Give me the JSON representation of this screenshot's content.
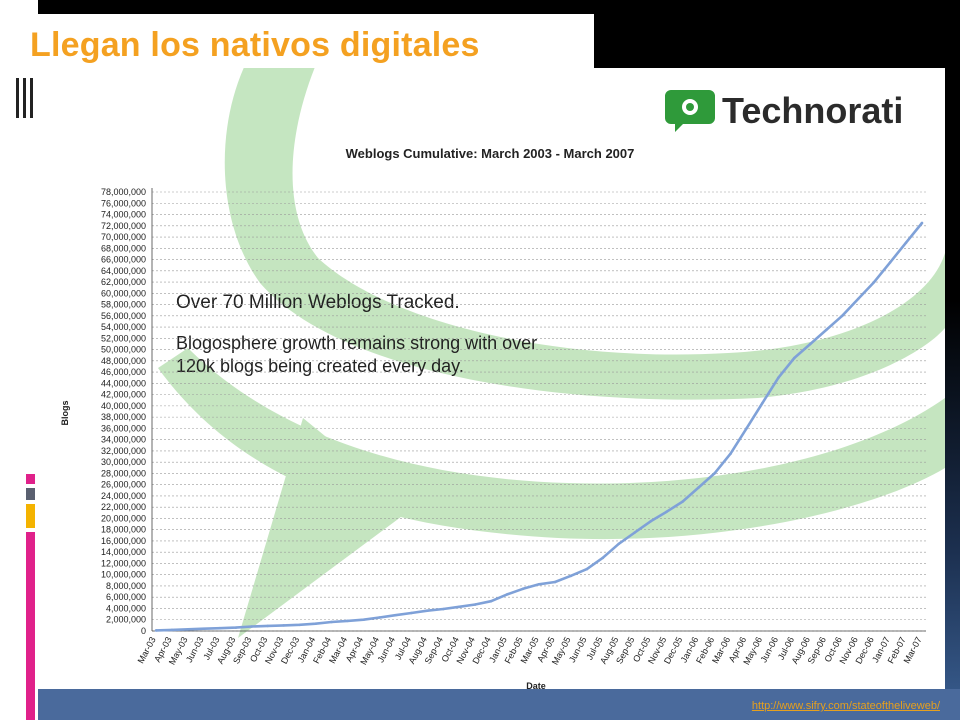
{
  "slide": {
    "title": "Llegan los nativos digitales",
    "source_link": "http://www.sifry.com/stateoftheliveweb/",
    "colors": {
      "title": "#f4a121",
      "accent_magenta": "#e0218a",
      "accent_yellow": "#f4b300",
      "accent_gray": "#5a6070",
      "footer": "#4a6a9c"
    }
  },
  "logo": {
    "text": "Technorati",
    "icon": "speech-bubble-icon",
    "color": "#2f9a3a"
  },
  "annotation": {
    "line1": "Over 70 Million Weblogs Tracked.",
    "line2": "Blogosphere growth remains strong with over",
    "line3": "120k blogs being created every day."
  },
  "chart_data": {
    "type": "line",
    "title": "Weblogs Cumulative: March 2003 - March 2007",
    "xlabel": "Date",
    "ylabel": "Blogs",
    "ylim": [
      0,
      78000000
    ],
    "yticks": [
      "0",
      "2,000,000",
      "4,000,000",
      "6,000,000",
      "8,000,000",
      "10,000,000",
      "12,000,000",
      "14,000,000",
      "16,000,000",
      "18,000,000",
      "20,000,000",
      "22,000,000",
      "24,000,000",
      "26,000,000",
      "28,000,000",
      "30,000,000",
      "32,000,000",
      "34,000,000",
      "36,000,000",
      "38,000,000",
      "40,000,000",
      "42,000,000",
      "44,000,000",
      "46,000,000",
      "48,000,000",
      "50,000,000",
      "52,000,000",
      "54,000,000",
      "56,000,000",
      "58,000,000",
      "60,000,000",
      "62,000,000",
      "64,000,000",
      "66,000,000",
      "68,000,000",
      "70,000,000",
      "72,000,000",
      "74,000,000",
      "76,000,000",
      "78,000,000"
    ],
    "categories": [
      "Mar-03",
      "Apr-03",
      "May-03",
      "Jun-03",
      "Jul-03",
      "Aug-03",
      "Sep-03",
      "Oct-03",
      "Nov-03",
      "Dec-03",
      "Jan-04",
      "Feb-04",
      "Mar-04",
      "Apr-04",
      "May-04",
      "Jun-04",
      "Jul-04",
      "Aug-04",
      "Sep-04",
      "Oct-04",
      "Nov-04",
      "Dec-04",
      "Jan-05",
      "Feb-05",
      "Mar-05",
      "Apr-05",
      "May-05",
      "Jun-05",
      "Jul-05",
      "Aug-05",
      "Sep-05",
      "Oct-05",
      "Nov-05",
      "Dec-05",
      "Jan-06",
      "Feb-06",
      "Mar-06",
      "Apr-06",
      "May-06",
      "Jun-06",
      "Jul-06",
      "Aug-06",
      "Sep-06",
      "Oct-06",
      "Nov-06",
      "Dec-06",
      "Jan-07",
      "Feb-07",
      "Mar-07"
    ],
    "series": [
      {
        "values": [
          100000,
          200000,
          300000,
          400000,
          500000,
          600000,
          800000,
          900000,
          1000000,
          1100000,
          1300000,
          1600000,
          1800000,
          2000000,
          2400000,
          2800000,
          3200000,
          3600000,
          3900000,
          4300000,
          4700000,
          5300000,
          6500000,
          7500000,
          8300000,
          8700000,
          9800000,
          11000000,
          13000000,
          15500000,
          17500000,
          19500000,
          21200000,
          23000000,
          25500000,
          28000000,
          31500000,
          36000000,
          40500000,
          45000000,
          48500000,
          51000000,
          53500000,
          56000000,
          59000000,
          62000000,
          65500000,
          69000000,
          72500000
        ],
        "color": "#7fa1d8"
      }
    ],
    "grid": true,
    "legend": "none"
  }
}
